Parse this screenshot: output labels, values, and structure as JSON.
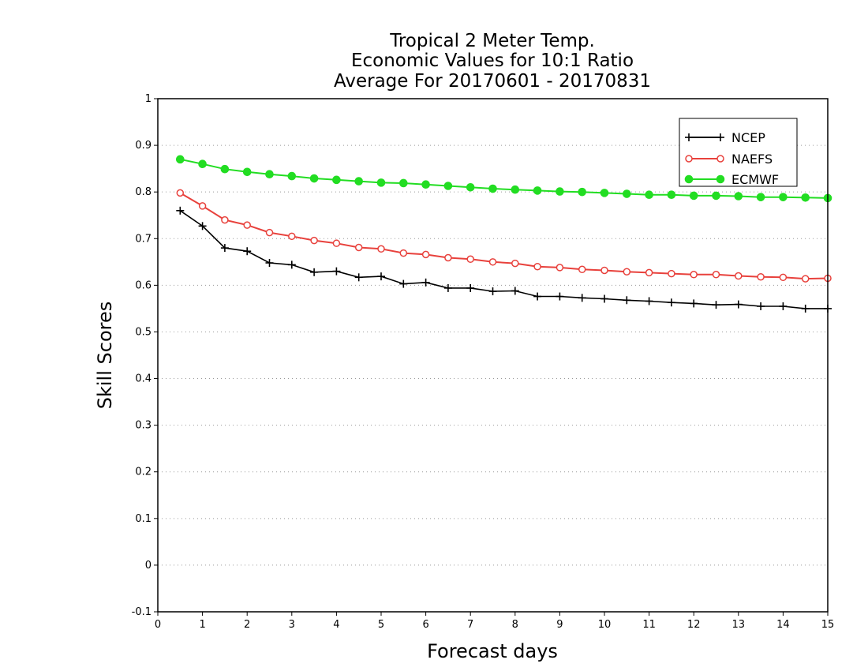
{
  "chart_data": {
    "type": "line",
    "title": [
      "Tropical 2 Meter Temp.",
      "Economic Values for 10:1 Ratio",
      "Average For 20170601 - 20170831"
    ],
    "xlabel": "Forecast days",
    "ylabel": "Skill Scores",
    "xlim": [
      0,
      15
    ],
    "ylim": [
      -0.1,
      1
    ],
    "x_ticks": [
      0,
      1,
      2,
      3,
      4,
      5,
      6,
      7,
      8,
      9,
      10,
      11,
      12,
      13,
      14,
      15
    ],
    "y_ticks": [
      -0.1,
      0,
      0.1,
      0.2,
      0.3,
      0.4,
      0.5,
      0.6,
      0.7,
      0.8,
      0.9,
      1
    ],
    "y_tick_labels": [
      "-0.1",
      "0",
      "0.1",
      "0.2",
      "0.3",
      "0.4",
      "0.5",
      "0.6",
      "0.7",
      "0.8",
      "0.9",
      "1"
    ],
    "grid": "horizontal dotted",
    "legend_position": "top-right",
    "x": [
      0.5,
      1,
      1.5,
      2,
      2.5,
      3,
      3.5,
      4,
      4.5,
      5,
      5.5,
      6,
      6.5,
      7,
      7.5,
      8,
      8.5,
      9,
      9.5,
      10,
      10.5,
      11,
      11.5,
      12,
      12.5,
      13,
      13.5,
      14,
      14.5,
      15
    ],
    "series": [
      {
        "name": "NCEP",
        "color": "#000000",
        "marker": "plus",
        "values": [
          0.76,
          0.727,
          0.68,
          0.673,
          0.648,
          0.644,
          0.628,
          0.63,
          0.617,
          0.619,
          0.603,
          0.606,
          0.594,
          0.594,
          0.587,
          0.588,
          0.576,
          0.576,
          0.573,
          0.571,
          0.568,
          0.566,
          0.563,
          0.561,
          0.558,
          0.559,
          0.555,
          0.555,
          0.55,
          0.55
        ]
      },
      {
        "name": "NAEFS",
        "color": "#e8413c",
        "marker": "open-circle",
        "values": [
          0.798,
          0.77,
          0.74,
          0.729,
          0.713,
          0.705,
          0.696,
          0.69,
          0.681,
          0.678,
          0.669,
          0.666,
          0.659,
          0.656,
          0.65,
          0.647,
          0.64,
          0.638,
          0.634,
          0.632,
          0.629,
          0.627,
          0.625,
          0.623,
          0.623,
          0.62,
          0.618,
          0.617,
          0.614,
          0.615
        ]
      },
      {
        "name": "ECMWF",
        "color": "#22dd22",
        "marker": "filled-circle",
        "values": [
          0.87,
          0.86,
          0.849,
          0.843,
          0.838,
          0.834,
          0.829,
          0.826,
          0.823,
          0.82,
          0.819,
          0.816,
          0.813,
          0.81,
          0.807,
          0.805,
          0.803,
          0.801,
          0.8,
          0.798,
          0.796,
          0.794,
          0.794,
          0.792,
          0.792,
          0.791,
          0.789,
          0.789,
          0.788,
          0.787
        ]
      }
    ]
  }
}
